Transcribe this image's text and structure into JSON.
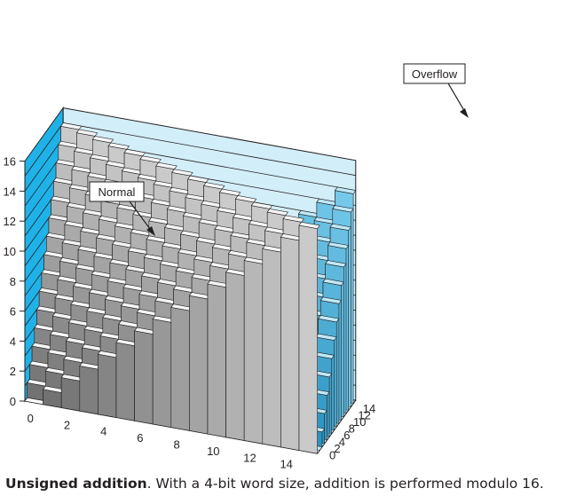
{
  "chart_data": {
    "type": "bar",
    "subtype": "3d-surface-of-stacked-bars",
    "word_size_bits": 4,
    "modulo": 16,
    "x_ticks": [
      "0",
      "2",
      "4",
      "6",
      "8",
      "10",
      "12",
      "14"
    ],
    "y_ticks": [
      "0",
      "2",
      "4",
      "6",
      "8",
      "10",
      "12",
      "14"
    ],
    "z_ticks": [
      "0",
      "2",
      "4",
      "6",
      "8",
      "10",
      "12",
      "14",
      "16"
    ],
    "x_range": [
      0,
      15
    ],
    "y_range": [
      0,
      15
    ],
    "z_range": [
      0,
      16
    ],
    "regions": [
      {
        "name": "Normal",
        "rule": "x + y < 16",
        "color": "#9b9b9b"
      },
      {
        "name": "Overflow",
        "rule": "x + y >= 16, value = x + y - 16",
        "color": "#29b6e8"
      }
    ],
    "colors": {
      "wall_left": "#1fb2e8",
      "wall_right": "#d2eef9",
      "normal_top": "#f5f5f5",
      "overflow_top": "#bfe9f8",
      "gridline": "#231f20"
    }
  },
  "callouts": {
    "normal": "Normal",
    "overflow": "Overflow"
  },
  "caption": {
    "bold": "Unsigned addition",
    "rest": ". With a 4-bit word size, addition is performed modulo 16."
  }
}
